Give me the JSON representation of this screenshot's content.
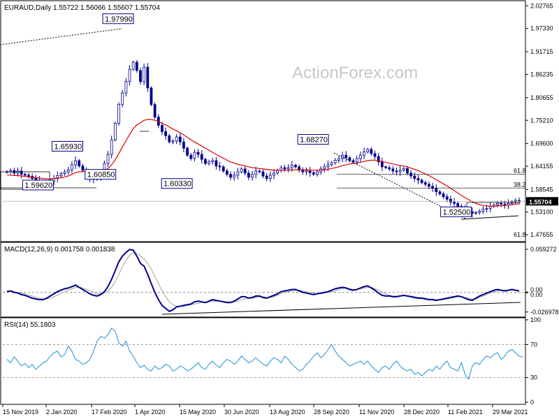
{
  "header": {
    "symbol_line": "EURAUD,Daily  1.55722 1.56066 1.55607 1.55704"
  },
  "watermark": "ActionForex.com",
  "colors": {
    "candle": "#00008b",
    "ma": "#e00000",
    "macd_main": "#00008b",
    "macd_signal": "#a0a0a0",
    "rsi": "#1e8fd8",
    "fib": "#333333"
  },
  "chart_data": [
    {
      "type": "candlestick",
      "panel": "price",
      "title": "EURAUD,Daily",
      "ohlc_last": {
        "open": 1.55722,
        "high": 1.56066,
        "low": 1.55607,
        "close": 1.55704
      },
      "current_price_label": "1.55704",
      "y_ticks": [
        "2.02765",
        "1.97330",
        "1.91715",
        "1.86235",
        "1.80655",
        "1.75210",
        "1.69600",
        "1.64155",
        "1.58545",
        "1.53100",
        "1.47655"
      ],
      "ylim": [
        1.465,
        2.035
      ],
      "x_ticks": [
        "15 Nov 2019",
        "2 Jan 2020",
        "17 Feb 2020",
        "1 Apr 2020",
        "15 May 2020",
        "30 Jun 2020",
        "13 Aug 2020",
        "28 Sep 2020",
        "11 Nov 2020",
        "28 Dec 2020",
        "11 Feb 2021",
        "29 Mar 2021"
      ],
      "x_start": "2019-11-01",
      "x_end": "2021-04-12",
      "annotations": [
        {
          "label": "1.97990",
          "date": "2020-03-19",
          "value": 1.9799
        },
        {
          "label": "1.65930",
          "date": "2020-01-23",
          "value": 1.6593
        },
        {
          "label": "1.60850",
          "date": "2020-01-31",
          "value": 1.6085
        },
        {
          "label": "1.59620",
          "date": "2019-12-24",
          "value": 1.5962
        },
        {
          "label": "1.60330",
          "date": "2020-05-25",
          "value": 1.6033
        },
        {
          "label": "1.68270",
          "date": "2020-10-01",
          "value": 1.6827
        },
        {
          "label": "1.52500",
          "date": "2021-02-18",
          "value": 1.525
        }
      ],
      "fib_levels": [
        {
          "label": "61.8",
          "value": 1.622
        },
        {
          "label": "38.2",
          "value": 1.589
        },
        {
          "label": "61.8",
          "value": 1.468
        }
      ],
      "series": [
        {
          "kind": "ohlc",
          "values_close": [
            1.628,
            1.631,
            1.625,
            1.63,
            1.622,
            1.62,
            1.617,
            1.612,
            1.608,
            1.603,
            1.6,
            1.598,
            1.604,
            1.612,
            1.619,
            1.624,
            1.628,
            1.633,
            1.645,
            1.655,
            1.642,
            1.632,
            1.62,
            1.612,
            1.61,
            1.612,
            1.625,
            1.648,
            1.67,
            1.705,
            1.745,
            1.79,
            1.818,
            1.846,
            1.875,
            1.892,
            1.872,
            1.845,
            1.88,
            1.83,
            1.79,
            1.76,
            1.74,
            1.725,
            1.715,
            1.7,
            1.702,
            1.712,
            1.7,
            1.685,
            1.668,
            1.66,
            1.675,
            1.67,
            1.658,
            1.648,
            1.652,
            1.655,
            1.642,
            1.64,
            1.63,
            1.622,
            1.615,
            1.62,
            1.628,
            1.635,
            1.625,
            1.615,
            1.622,
            1.63,
            1.628,
            1.618,
            1.612,
            1.62,
            1.625,
            1.632,
            1.638,
            1.635,
            1.638,
            1.644,
            1.64,
            1.632,
            1.628,
            1.63,
            1.626,
            1.622,
            1.628,
            1.635,
            1.64,
            1.645,
            1.65,
            1.656,
            1.66,
            1.668,
            1.662,
            1.655,
            1.652,
            1.66,
            1.668,
            1.676,
            1.682,
            1.672,
            1.665,
            1.652,
            1.64,
            1.638,
            1.635,
            1.63,
            1.628,
            1.632,
            1.636,
            1.625,
            1.618,
            1.612,
            1.608,
            1.602,
            1.598,
            1.593,
            1.588,
            1.58,
            1.575,
            1.568,
            1.562,
            1.555,
            1.552,
            1.545,
            1.541,
            1.536,
            1.532,
            1.528,
            1.53,
            1.533,
            1.538,
            1.54,
            1.545,
            1.548,
            1.552,
            1.55,
            1.548,
            1.552,
            1.556,
            1.559,
            1.557
          ]
        },
        {
          "kind": "ma",
          "name": "",
          "values": [
            1.62,
            1.62,
            1.619,
            1.619,
            1.618,
            1.617,
            1.616,
            1.615,
            1.614,
            1.613,
            1.612,
            1.611,
            1.611,
            1.612,
            1.613,
            1.614,
            1.616,
            1.618,
            1.622,
            1.626,
            1.628,
            1.629,
            1.629,
            1.628,
            1.627,
            1.627,
            1.628,
            1.631,
            1.636,
            1.645,
            1.657,
            1.672,
            1.688,
            1.703,
            1.718,
            1.732,
            1.741,
            1.746,
            1.752,
            1.754,
            1.754,
            1.752,
            1.749,
            1.745,
            1.741,
            1.736,
            1.731,
            1.727,
            1.722,
            1.717,
            1.711,
            1.705,
            1.7,
            1.695,
            1.69,
            1.685,
            1.68,
            1.675,
            1.67,
            1.665,
            1.661,
            1.656,
            1.652,
            1.649,
            1.646,
            1.644,
            1.642,
            1.64,
            1.638,
            1.637,
            1.636,
            1.635,
            1.634,
            1.633,
            1.632,
            1.632,
            1.632,
            1.632,
            1.632,
            1.633,
            1.633,
            1.633,
            1.633,
            1.633,
            1.632,
            1.632,
            1.632,
            1.632,
            1.633,
            1.634,
            1.636,
            1.638,
            1.64,
            1.643,
            1.645,
            1.647,
            1.648,
            1.649,
            1.651,
            1.653,
            1.655,
            1.656,
            1.656,
            1.655,
            1.653,
            1.651,
            1.649,
            1.647,
            1.645,
            1.643,
            1.642,
            1.64,
            1.637,
            1.634,
            1.631,
            1.627,
            1.623,
            1.619,
            1.614,
            1.609,
            1.604,
            1.599,
            1.594,
            1.588,
            1.583,
            1.577,
            1.571,
            1.566,
            1.561,
            1.556,
            1.552,
            1.549,
            1.547,
            1.546,
            1.545,
            1.545,
            1.546,
            1.546,
            1.547,
            1.548,
            1.549,
            1.55,
            1.551
          ]
        }
      ]
    },
    {
      "type": "line",
      "panel": "macd",
      "title": "MACD(12,26,9) 0.001758 0.001838",
      "y_ticks": [
        "0.059272",
        "0.00",
        "0.00",
        "-0.026978"
      ],
      "ylim": [
        -0.032,
        0.066
      ],
      "series": [
        {
          "name": "",
          "values": [
            0.001,
            0.002,
            0.0,
            -0.001,
            -0.003,
            -0.004,
            -0.006,
            -0.008,
            -0.009,
            -0.01,
            -0.01,
            -0.008,
            -0.005,
            -0.002,
            0.001,
            0.003,
            0.005,
            0.006,
            0.008,
            0.01,
            0.007,
            0.004,
            0.001,
            -0.002,
            -0.004,
            -0.005,
            -0.003,
            0.001,
            0.008,
            0.018,
            0.03,
            0.042,
            0.05,
            0.055,
            0.059,
            0.058,
            0.05,
            0.04,
            0.036,
            0.025,
            0.012,
            0.0,
            -0.01,
            -0.018,
            -0.022,
            -0.026,
            -0.024,
            -0.02,
            -0.019,
            -0.018,
            -0.017,
            -0.016,
            -0.013,
            -0.012,
            -0.013,
            -0.014,
            -0.012,
            -0.01,
            -0.011,
            -0.012,
            -0.013,
            -0.014,
            -0.014,
            -0.012,
            -0.009,
            -0.006,
            -0.006,
            -0.008,
            -0.007,
            -0.005,
            -0.005,
            -0.007,
            -0.008,
            -0.006,
            -0.004,
            -0.002,
            0.001,
            0.002,
            0.003,
            0.004,
            0.004,
            0.002,
            0.0,
            -0.001,
            -0.002,
            -0.003,
            -0.002,
            -0.001,
            0.0,
            0.001,
            0.003,
            0.005,
            0.006,
            0.007,
            0.006,
            0.004,
            0.003,
            0.004,
            0.006,
            0.008,
            0.009,
            0.006,
            0.003,
            -0.001,
            -0.004,
            -0.005,
            -0.005,
            -0.006,
            -0.006,
            -0.005,
            -0.004,
            -0.005,
            -0.006,
            -0.007,
            -0.008,
            -0.008,
            -0.009,
            -0.01,
            -0.01,
            -0.011,
            -0.01,
            -0.009,
            -0.008,
            -0.007,
            -0.006,
            -0.005,
            -0.006,
            -0.008,
            -0.01,
            -0.011,
            -0.008,
            -0.005,
            -0.003,
            -0.001,
            0.001,
            0.003,
            0.004,
            0.003,
            0.002,
            0.003,
            0.004,
            0.003,
            0.002
          ]
        },
        {
          "name": "",
          "values": [
            0.002,
            0.002,
            0.001,
            0.0,
            -0.001,
            -0.002,
            -0.004,
            -0.005,
            -0.007,
            -0.008,
            -0.009,
            -0.009,
            -0.008,
            -0.006,
            -0.004,
            -0.001,
            0.001,
            0.003,
            0.005,
            0.007,
            0.007,
            0.006,
            0.004,
            0.002,
            0.0,
            -0.002,
            -0.002,
            -0.001,
            0.002,
            0.007,
            0.015,
            0.025,
            0.035,
            0.044,
            0.051,
            0.055,
            0.054,
            0.05,
            0.046,
            0.04,
            0.032,
            0.022,
            0.012,
            0.002,
            -0.006,
            -0.013,
            -0.017,
            -0.019,
            -0.019,
            -0.019,
            -0.018,
            -0.017,
            -0.016,
            -0.015,
            -0.014,
            -0.014,
            -0.013,
            -0.012,
            -0.012,
            -0.012,
            -0.012,
            -0.013,
            -0.013,
            -0.013,
            -0.012,
            -0.01,
            -0.009,
            -0.008,
            -0.008,
            -0.007,
            -0.006,
            -0.006,
            -0.007,
            -0.007,
            -0.006,
            -0.004,
            -0.002,
            0.0,
            0.001,
            0.002,
            0.003,
            0.003,
            0.002,
            0.001,
            0.0,
            -0.001,
            -0.002,
            -0.002,
            -0.001,
            0.0,
            0.001,
            0.002,
            0.004,
            0.005,
            0.006,
            0.005,
            0.004,
            0.004,
            0.005,
            0.006,
            0.007,
            0.007,
            0.005,
            0.003,
            0.0,
            -0.002,
            -0.004,
            -0.005,
            -0.005,
            -0.005,
            -0.005,
            -0.005,
            -0.005,
            -0.006,
            -0.007,
            -0.007,
            -0.008,
            -0.009,
            -0.009,
            -0.01,
            -0.01,
            -0.01,
            -0.009,
            -0.008,
            -0.007,
            -0.006,
            -0.006,
            -0.007,
            -0.008,
            -0.009,
            -0.009,
            -0.007,
            -0.005,
            -0.003,
            -0.001,
            0.001,
            0.002,
            0.003,
            0.003,
            0.003,
            0.003,
            0.003,
            0.002
          ]
        }
      ]
    },
    {
      "type": "line",
      "panel": "rsi",
      "title": "RSI(14) 55.1803",
      "y_ticks": [
        "100",
        "70",
        "30",
        "0"
      ],
      "ylim": [
        0,
        100
      ],
      "series": [
        {
          "name": "",
          "values": [
            52,
            48,
            55,
            50,
            44,
            47,
            42,
            46,
            40,
            44,
            48,
            50,
            56,
            60,
            62,
            55,
            58,
            68,
            62,
            52,
            50,
            46,
            48,
            52,
            62,
            74,
            80,
            78,
            82,
            90,
            86,
            72,
            68,
            74,
            62,
            56,
            48,
            42,
            45,
            40,
            38,
            44,
            40,
            42,
            46,
            44,
            38,
            40,
            44,
            42,
            38,
            40,
            44,
            48,
            42,
            40,
            46,
            50,
            45,
            42,
            48,
            52,
            50,
            46,
            50,
            56,
            52,
            48,
            50,
            54,
            50,
            46,
            44,
            50,
            54,
            52,
            48,
            56,
            52,
            46,
            42,
            38,
            40,
            46,
            50,
            56,
            60,
            54,
            58,
            64,
            70,
            62,
            56,
            52,
            48,
            44,
            46,
            48,
            50,
            46,
            50,
            44,
            40,
            36,
            42,
            44,
            40,
            46,
            50,
            44,
            40,
            38,
            40,
            34,
            36,
            32,
            36,
            40,
            38,
            44,
            40,
            46,
            50,
            42,
            40,
            38,
            48,
            34,
            28,
            44,
            48,
            46,
            52,
            56,
            54,
            58,
            60,
            52,
            56,
            62,
            64,
            60,
            56,
            55
          ]
        }
      ]
    }
  ],
  "x_axis_labels": [
    "15 Nov 2019",
    "2 Jan 2020",
    "17 Feb 2020",
    "1 Apr 2020",
    "15 May 2020",
    "30 Jun 2020",
    "13 Aug 2020",
    "28 Sep 2020",
    "11 Nov 2020",
    "28 Dec 2020",
    "11 Feb 2021",
    "29 Mar 2021"
  ]
}
